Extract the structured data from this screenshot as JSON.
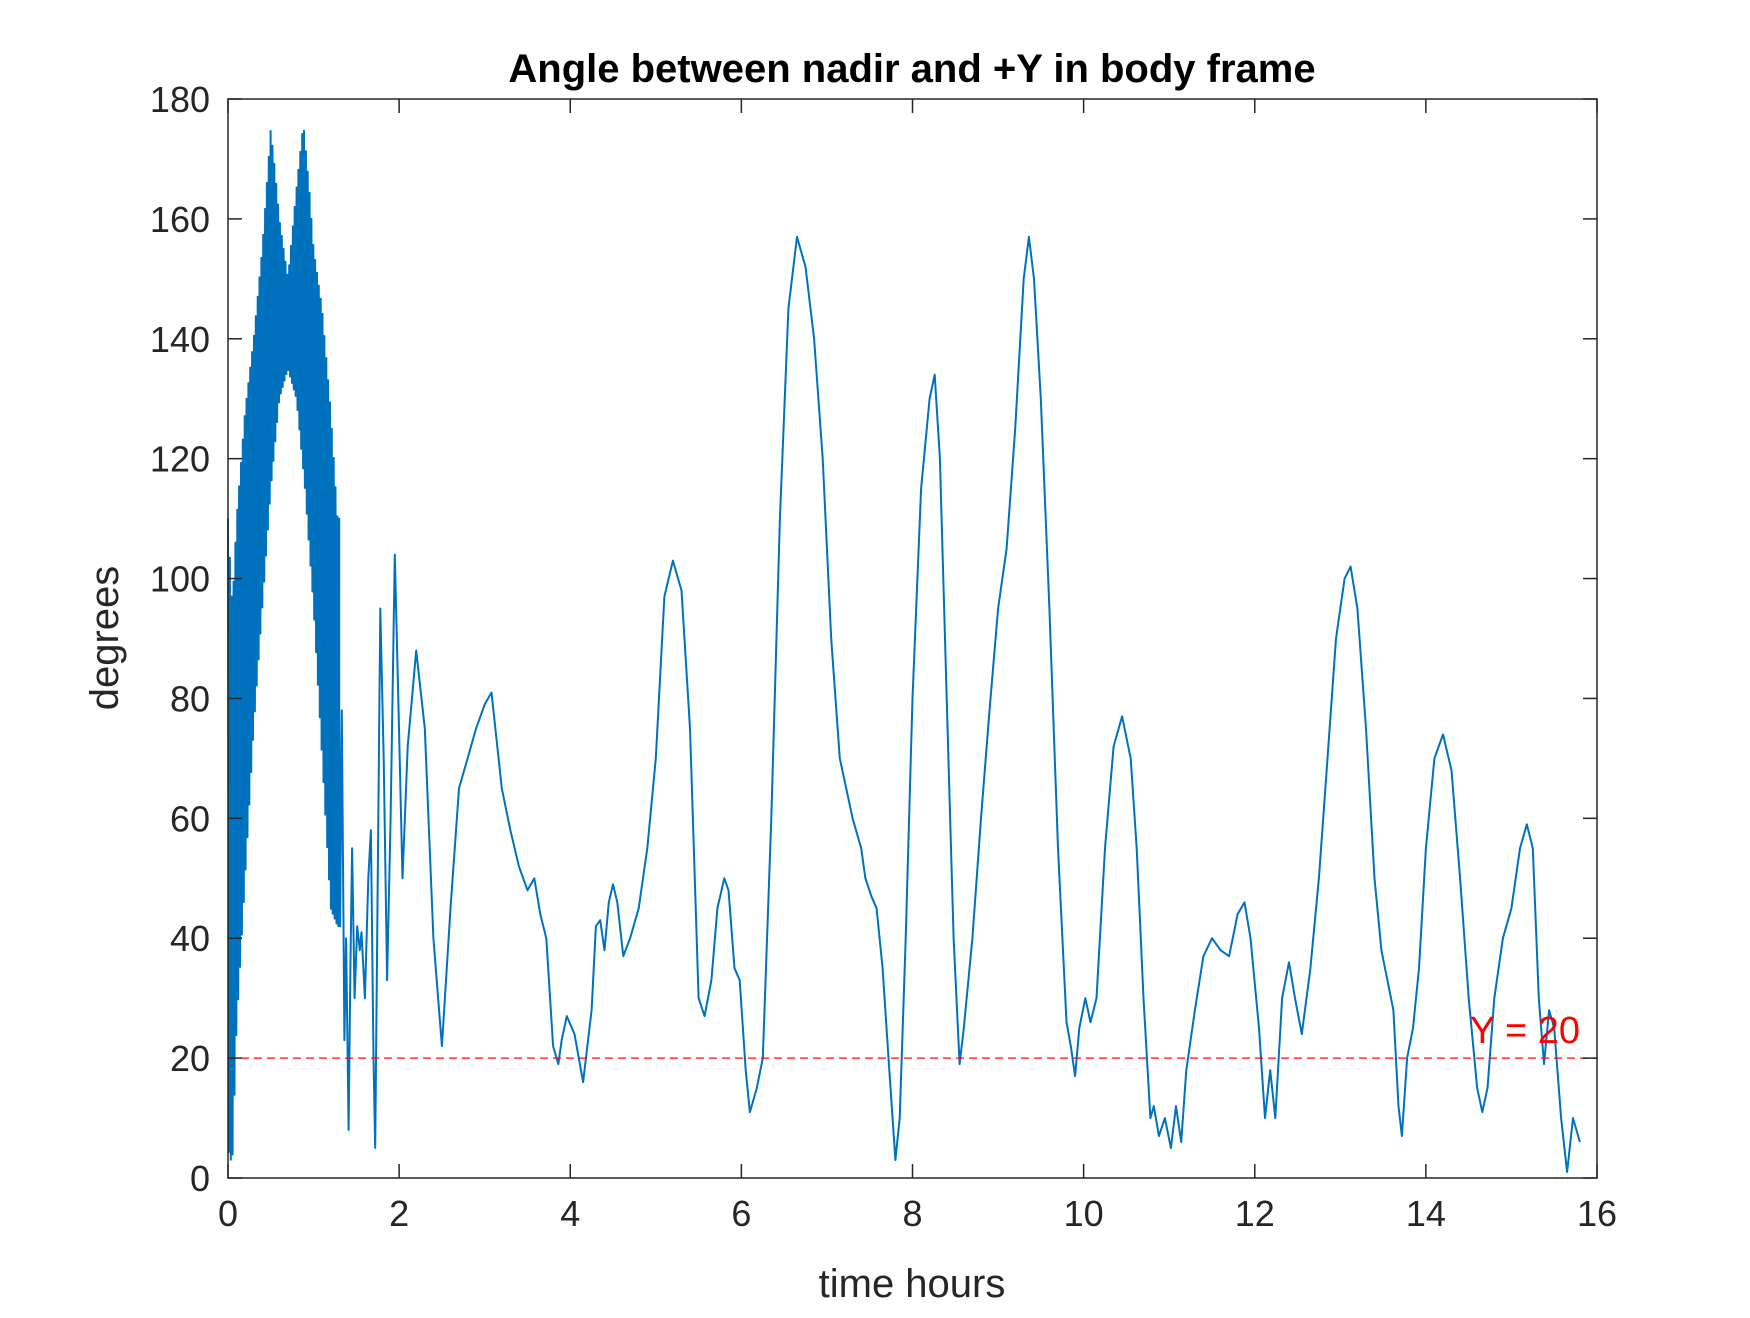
{
  "chart_data": {
    "type": "line",
    "title": "Angle between nadir and +Y in body frame",
    "xlabel": "time hours",
    "ylabel": "degrees",
    "xlim": [
      0,
      16
    ],
    "ylim": [
      0,
      180
    ],
    "xticks": [
      0,
      2,
      4,
      6,
      8,
      10,
      12,
      14,
      16
    ],
    "yticks": [
      0,
      20,
      40,
      60,
      80,
      100,
      120,
      140,
      160,
      180
    ],
    "grid": false,
    "box": true,
    "line_color": "#0072BD",
    "reference_line": {
      "y": 20,
      "label": "Y = 20",
      "color": "#FF0000",
      "style": "dashed"
    },
    "series": [
      {
        "oscillation": {
          "x_range": [
            0,
            1.3
          ],
          "upper_envelope": [
            [
              0,
              110
            ],
            [
              0.05,
              95
            ],
            [
              0.1,
              110
            ],
            [
              0.2,
              128
            ],
            [
              0.3,
              140
            ],
            [
              0.4,
              155
            ],
            [
              0.5,
              175
            ],
            [
              0.55,
              168
            ],
            [
              0.6,
              160
            ],
            [
              0.7,
              150
            ],
            [
              0.8,
              165
            ],
            [
              0.88,
              176
            ],
            [
              0.95,
              165
            ],
            [
              1.0,
              155
            ],
            [
              1.1,
              145
            ],
            [
              1.2,
              128
            ],
            [
              1.28,
              110
            ]
          ],
          "lower_envelope": [
            [
              0,
              5
            ],
            [
              0.05,
              2
            ],
            [
              0.1,
              25
            ],
            [
              0.2,
              50
            ],
            [
              0.3,
              75
            ],
            [
              0.4,
              95
            ],
            [
              0.5,
              115
            ],
            [
              0.6,
              130
            ],
            [
              0.7,
              135
            ],
            [
              0.8,
              130
            ],
            [
              0.9,
              115
            ],
            [
              1.0,
              95
            ],
            [
              1.1,
              70
            ],
            [
              1.2,
              45
            ],
            [
              1.28,
              42
            ]
          ],
          "cycles": 60
        },
        "points": [
          [
            1.3,
            80
          ],
          [
            1.31,
            42
          ],
          [
            1.33,
            78
          ],
          [
            1.36,
            23
          ],
          [
            1.38,
            40
          ],
          [
            1.41,
            8
          ],
          [
            1.43,
            35
          ],
          [
            1.45,
            55
          ],
          [
            1.48,
            30
          ],
          [
            1.51,
            42
          ],
          [
            1.54,
            38
          ],
          [
            1.56,
            41
          ],
          [
            1.6,
            30
          ],
          [
            1.64,
            50
          ],
          [
            1.67,
            58
          ],
          [
            1.7,
            20
          ],
          [
            1.72,
            5
          ],
          [
            1.74,
            35
          ],
          [
            1.78,
            95
          ],
          [
            1.82,
            70
          ],
          [
            1.86,
            33
          ],
          [
            1.9,
            60
          ],
          [
            1.95,
            104
          ],
          [
            1.99,
            80
          ],
          [
            2.04,
            50
          ],
          [
            2.1,
            72
          ],
          [
            2.2,
            88
          ],
          [
            2.3,
            75
          ],
          [
            2.4,
            40
          ],
          [
            2.5,
            22
          ],
          [
            2.6,
            45
          ],
          [
            2.7,
            65
          ],
          [
            2.8,
            70
          ],
          [
            2.9,
            75
          ],
          [
            3.0,
            79
          ],
          [
            3.08,
            81
          ],
          [
            3.2,
            65
          ],
          [
            3.3,
            58
          ],
          [
            3.4,
            52
          ],
          [
            3.5,
            48
          ],
          [
            3.58,
            50
          ],
          [
            3.65,
            44
          ],
          [
            3.72,
            40
          ],
          [
            3.8,
            22
          ],
          [
            3.86,
            19
          ],
          [
            3.9,
            23
          ],
          [
            3.96,
            27
          ],
          [
            4.05,
            24
          ],
          [
            4.15,
            16
          ],
          [
            4.25,
            28
          ],
          [
            4.3,
            42
          ],
          [
            4.35,
            43
          ],
          [
            4.4,
            38
          ],
          [
            4.45,
            46
          ],
          [
            4.5,
            49
          ],
          [
            4.55,
            46
          ],
          [
            4.62,
            37
          ],
          [
            4.7,
            40
          ],
          [
            4.8,
            45
          ],
          [
            4.9,
            55
          ],
          [
            5.0,
            70
          ],
          [
            5.1,
            97
          ],
          [
            5.2,
            103
          ],
          [
            5.3,
            98
          ],
          [
            5.4,
            75
          ],
          [
            5.5,
            30
          ],
          [
            5.57,
            27
          ],
          [
            5.65,
            33
          ],
          [
            5.72,
            45
          ],
          [
            5.8,
            50
          ],
          [
            5.85,
            48
          ],
          [
            5.92,
            35
          ],
          [
            5.98,
            33
          ],
          [
            6.05,
            18
          ],
          [
            6.1,
            11
          ],
          [
            6.18,
            15
          ],
          [
            6.25,
            20
          ],
          [
            6.35,
            60
          ],
          [
            6.45,
            110
          ],
          [
            6.55,
            145
          ],
          [
            6.65,
            157
          ],
          [
            6.75,
            152
          ],
          [
            6.85,
            140
          ],
          [
            6.95,
            120
          ],
          [
            7.05,
            90
          ],
          [
            7.15,
            70
          ],
          [
            7.3,
            60
          ],
          [
            7.4,
            55
          ],
          [
            7.45,
            50
          ],
          [
            7.52,
            47
          ],
          [
            7.58,
            45
          ],
          [
            7.65,
            35
          ],
          [
            7.72,
            20
          ],
          [
            7.8,
            3
          ],
          [
            7.85,
            10
          ],
          [
            7.92,
            40
          ],
          [
            8.0,
            80
          ],
          [
            8.1,
            115
          ],
          [
            8.2,
            130
          ],
          [
            8.26,
            134
          ],
          [
            8.32,
            120
          ],
          [
            8.4,
            80
          ],
          [
            8.48,
            40
          ],
          [
            8.55,
            19
          ],
          [
            8.6,
            25
          ],
          [
            8.7,
            40
          ],
          [
            8.8,
            60
          ],
          [
            8.9,
            78
          ],
          [
            9.0,
            95
          ],
          [
            9.1,
            105
          ],
          [
            9.2,
            125
          ],
          [
            9.3,
            150
          ],
          [
            9.36,
            157
          ],
          [
            9.42,
            150
          ],
          [
            9.5,
            130
          ],
          [
            9.6,
            95
          ],
          [
            9.7,
            55
          ],
          [
            9.8,
            26
          ],
          [
            9.85,
            22
          ],
          [
            9.9,
            17
          ],
          [
            9.95,
            25
          ],
          [
            10.02,
            30
          ],
          [
            10.08,
            26
          ],
          [
            10.15,
            30
          ],
          [
            10.25,
            55
          ],
          [
            10.35,
            72
          ],
          [
            10.45,
            77
          ],
          [
            10.55,
            70
          ],
          [
            10.62,
            55
          ],
          [
            10.7,
            30
          ],
          [
            10.78,
            10
          ],
          [
            10.82,
            12
          ],
          [
            10.88,
            7
          ],
          [
            10.95,
            10
          ],
          [
            11.02,
            5
          ],
          [
            11.08,
            12
          ],
          [
            11.14,
            6
          ],
          [
            11.2,
            18
          ],
          [
            11.3,
            28
          ],
          [
            11.4,
            37
          ],
          [
            11.5,
            40
          ],
          [
            11.6,
            38
          ],
          [
            11.7,
            37
          ],
          [
            11.8,
            44
          ],
          [
            11.88,
            46
          ],
          [
            11.95,
            40
          ],
          [
            12.05,
            25
          ],
          [
            12.12,
            10
          ],
          [
            12.18,
            18
          ],
          [
            12.24,
            10
          ],
          [
            12.32,
            30
          ],
          [
            12.4,
            36
          ],
          [
            12.47,
            30
          ],
          [
            12.55,
            24
          ],
          [
            12.65,
            35
          ],
          [
            12.75,
            50
          ],
          [
            12.85,
            70
          ],
          [
            12.95,
            90
          ],
          [
            13.05,
            100
          ],
          [
            13.12,
            102
          ],
          [
            13.2,
            95
          ],
          [
            13.3,
            75
          ],
          [
            13.4,
            50
          ],
          [
            13.48,
            38
          ],
          [
            13.55,
            33
          ],
          [
            13.62,
            28
          ],
          [
            13.68,
            12
          ],
          [
            13.72,
            7
          ],
          [
            13.78,
            20
          ],
          [
            13.85,
            25
          ],
          [
            13.92,
            35
          ],
          [
            14.0,
            55
          ],
          [
            14.1,
            70
          ],
          [
            14.2,
            74
          ],
          [
            14.3,
            68
          ],
          [
            14.4,
            50
          ],
          [
            14.5,
            30
          ],
          [
            14.6,
            15
          ],
          [
            14.66,
            11
          ],
          [
            14.72,
            15
          ],
          [
            14.8,
            30
          ],
          [
            14.9,
            40
          ],
          [
            15.0,
            45
          ],
          [
            15.1,
            55
          ],
          [
            15.18,
            59
          ],
          [
            15.25,
            55
          ],
          [
            15.32,
            30
          ],
          [
            15.38,
            19
          ],
          [
            15.44,
            28
          ],
          [
            15.5,
            25
          ],
          [
            15.58,
            10
          ],
          [
            15.65,
            1
          ],
          [
            15.72,
            10
          ],
          [
            15.8,
            6
          ]
        ]
      }
    ]
  }
}
